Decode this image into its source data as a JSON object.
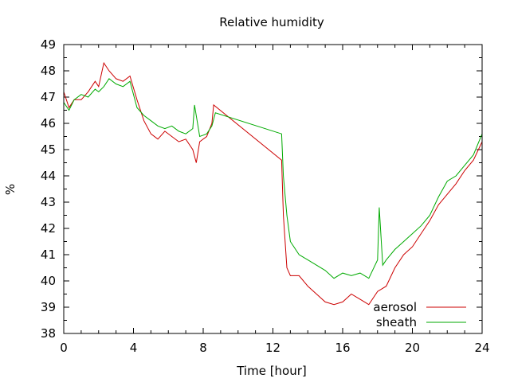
{
  "chart_data": {
    "type": "line",
    "title": "Relative humidity",
    "xlabel": "Time [hour]",
    "ylabel": "%",
    "xlim": [
      0,
      24
    ],
    "ylim": [
      38,
      49
    ],
    "xticks": [
      0,
      4,
      8,
      12,
      16,
      20,
      24
    ],
    "yticks": [
      38,
      39,
      40,
      41,
      42,
      43,
      44,
      45,
      46,
      47,
      48,
      49
    ],
    "grid": false,
    "legend_position": "bottom-right",
    "series": [
      {
        "name": "aerosol",
        "color": "#cc0000",
        "points": [
          [
            0.0,
            47.2
          ],
          [
            0.3,
            46.6
          ],
          [
            0.6,
            46.9
          ],
          [
            1.0,
            46.9
          ],
          [
            1.4,
            47.2
          ],
          [
            1.8,
            47.6
          ],
          [
            2.0,
            47.4
          ],
          [
            2.3,
            48.3
          ],
          [
            2.6,
            48.0
          ],
          [
            3.0,
            47.7
          ],
          [
            3.4,
            47.6
          ],
          [
            3.8,
            47.8
          ],
          [
            4.2,
            46.9
          ],
          [
            4.6,
            46.1
          ],
          [
            5.0,
            45.6
          ],
          [
            5.4,
            45.4
          ],
          [
            5.8,
            45.7
          ],
          [
            6.2,
            45.5
          ],
          [
            6.6,
            45.3
          ],
          [
            7.0,
            45.4
          ],
          [
            7.4,
            45.0
          ],
          [
            7.6,
            44.5
          ],
          [
            7.8,
            45.3
          ],
          [
            8.2,
            45.5
          ],
          [
            8.5,
            46.0
          ],
          [
            8.6,
            46.7
          ],
          [
            12.5,
            44.6
          ],
          [
            12.6,
            42.5
          ],
          [
            12.8,
            40.5
          ],
          [
            13.0,
            40.2
          ],
          [
            13.5,
            40.2
          ],
          [
            14.0,
            39.8
          ],
          [
            14.5,
            39.5
          ],
          [
            15.0,
            39.2
          ],
          [
            15.5,
            39.1
          ],
          [
            16.0,
            39.2
          ],
          [
            16.5,
            39.5
          ],
          [
            17.0,
            39.3
          ],
          [
            17.5,
            39.1
          ],
          [
            18.0,
            39.6
          ],
          [
            18.5,
            39.8
          ],
          [
            19.0,
            40.5
          ],
          [
            19.5,
            41.0
          ],
          [
            20.0,
            41.3
          ],
          [
            20.5,
            41.8
          ],
          [
            21.0,
            42.3
          ],
          [
            21.5,
            42.9
          ],
          [
            22.0,
            43.3
          ],
          [
            22.5,
            43.7
          ],
          [
            23.0,
            44.2
          ],
          [
            23.5,
            44.6
          ],
          [
            24.0,
            45.3
          ]
        ]
      },
      {
        "name": "sheath",
        "color": "#00aa00",
        "points": [
          [
            0.0,
            46.8
          ],
          [
            0.3,
            46.5
          ],
          [
            0.6,
            46.9
          ],
          [
            1.0,
            47.1
          ],
          [
            1.4,
            47.0
          ],
          [
            1.8,
            47.3
          ],
          [
            2.0,
            47.2
          ],
          [
            2.3,
            47.4
          ],
          [
            2.6,
            47.7
          ],
          [
            3.0,
            47.5
          ],
          [
            3.4,
            47.4
          ],
          [
            3.8,
            47.6
          ],
          [
            4.2,
            46.6
          ],
          [
            4.6,
            46.3
          ],
          [
            5.0,
            46.1
          ],
          [
            5.4,
            45.9
          ],
          [
            5.8,
            45.8
          ],
          [
            6.2,
            45.9
          ],
          [
            6.6,
            45.7
          ],
          [
            7.0,
            45.6
          ],
          [
            7.4,
            45.8
          ],
          [
            7.5,
            46.7
          ],
          [
            7.8,
            45.5
          ],
          [
            8.2,
            45.6
          ],
          [
            8.5,
            45.9
          ],
          [
            8.7,
            46.4
          ],
          [
            12.5,
            45.6
          ],
          [
            12.6,
            44.0
          ],
          [
            12.8,
            42.5
          ],
          [
            13.0,
            41.5
          ],
          [
            13.5,
            41.0
          ],
          [
            14.0,
            40.8
          ],
          [
            14.5,
            40.6
          ],
          [
            15.0,
            40.4
          ],
          [
            15.5,
            40.1
          ],
          [
            16.0,
            40.3
          ],
          [
            16.5,
            40.2
          ],
          [
            17.0,
            40.3
          ],
          [
            17.5,
            40.1
          ],
          [
            18.0,
            40.8
          ],
          [
            18.1,
            42.8
          ],
          [
            18.3,
            40.6
          ],
          [
            18.5,
            40.8
          ],
          [
            19.0,
            41.2
          ],
          [
            19.5,
            41.5
          ],
          [
            20.0,
            41.8
          ],
          [
            20.5,
            42.1
          ],
          [
            21.0,
            42.5
          ],
          [
            21.5,
            43.2
          ],
          [
            22.0,
            43.8
          ],
          [
            22.5,
            44.0
          ],
          [
            23.0,
            44.4
          ],
          [
            23.5,
            44.8
          ],
          [
            24.0,
            45.6
          ]
        ]
      }
    ]
  }
}
